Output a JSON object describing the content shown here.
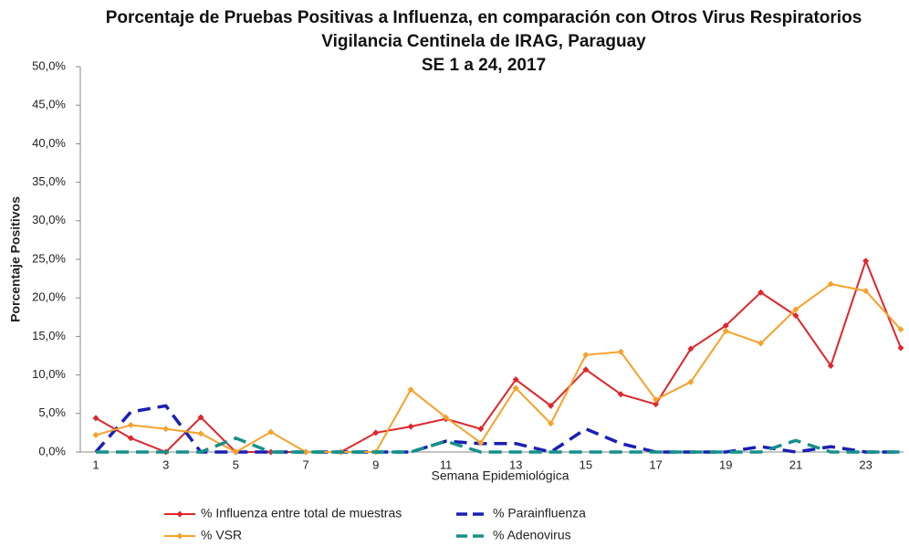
{
  "chart_data": {
    "type": "line",
    "title": [
      "Porcentaje de Pruebas Positivas a Influenza, en comparación con Otros Virus Respiratorios",
      "Vigilancia Centinela de IRAG, Paraguay",
      "SE 1 a 24, 2017"
    ],
    "x_label": "Semana Epidemiológica",
    "y_label": "Porcentaje Positivos",
    "categories": [
      "1",
      null,
      "3",
      null,
      "5",
      null,
      "7",
      null,
      "9",
      null,
      "11",
      null,
      "13",
      null,
      "15",
      null,
      "17",
      null,
      "19",
      null,
      "21",
      null,
      "23",
      null
    ],
    "ylim": [
      0,
      50
    ],
    "yticks": [
      {
        "value": 0,
        "label": "0,0%"
      },
      {
        "value": 5,
        "label": "5,0%"
      },
      {
        "value": 10,
        "label": "10,0%"
      },
      {
        "value": 15,
        "label": "15,0%"
      },
      {
        "value": 20,
        "label": "20,0%"
      },
      {
        "value": 25,
        "label": "25,0%"
      },
      {
        "value": 30,
        "label": "30,0%"
      },
      {
        "value": 35,
        "label": "35,0%"
      },
      {
        "value": 40,
        "label": "40,0%"
      },
      {
        "value": 45,
        "label": "45,0%"
      },
      {
        "value": 50,
        "label": "50,0%"
      }
    ],
    "grid": false,
    "series": [
      {
        "name": "% Influenza entre total de muestras",
        "color": "#e0262a",
        "marker": "diamond",
        "dashed": false,
        "values": [
          4.4,
          1.8,
          0,
          4.5,
          0,
          0,
          0,
          0,
          2.5,
          3.3,
          4.3,
          3.0,
          9.4,
          6.0,
          10.7,
          7.5,
          6.2,
          13.4,
          16.4,
          20.7,
          17.7,
          11.2,
          24.8,
          13.5
        ]
      },
      {
        "name": "% Parainfluenza",
        "color": "#1a1fb4",
        "marker": "none",
        "dashed": true,
        "values": [
          0,
          5.2,
          6.0,
          0,
          0,
          0,
          0,
          0,
          0,
          0,
          1.4,
          1.1,
          1.1,
          0,
          3.0,
          1.1,
          0,
          0,
          0,
          0.7,
          0,
          0.7,
          0,
          0
        ]
      },
      {
        "name": "% VSR",
        "color": "#f7a12a",
        "marker": "diamond",
        "dashed": false,
        "values": [
          2.2,
          3.5,
          3.0,
          2.4,
          0,
          2.6,
          0,
          0,
          0,
          8.1,
          4.5,
          1.2,
          8.3,
          3.7,
          12.6,
          13.0,
          6.8,
          9.1,
          15.7,
          14.1,
          18.5,
          21.8,
          20.9,
          15.9
        ]
      },
      {
        "name": "% Adenovirus",
        "color": "#15908a",
        "marker": "none",
        "dashed": true,
        "values": [
          0,
          0,
          0,
          0,
          1.8,
          0,
          0,
          0,
          0,
          0,
          1.4,
          0,
          0,
          0,
          0,
          0,
          0,
          0,
          0,
          0,
          1.5,
          0,
          0,
          0
        ]
      }
    ]
  }
}
